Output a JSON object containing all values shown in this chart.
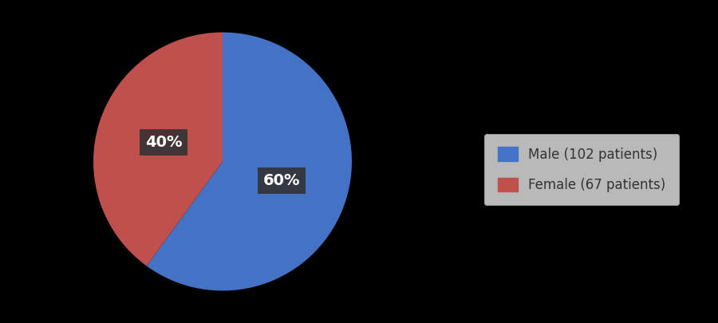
{
  "labels": [
    "Male (102 patients)",
    "Female (67 patients)"
  ],
  "values": [
    60,
    40
  ],
  "colors": [
    "#4472C4",
    "#C0504D"
  ],
  "pct_labels": [
    "60%",
    "40%"
  ],
  "background_color": "#000000",
  "legend_bg": "#e8e8e8",
  "label_bg": "#333333",
  "label_text_color": "#ffffff",
  "label_fontsize": 14,
  "legend_fontsize": 12,
  "startangle": 90
}
